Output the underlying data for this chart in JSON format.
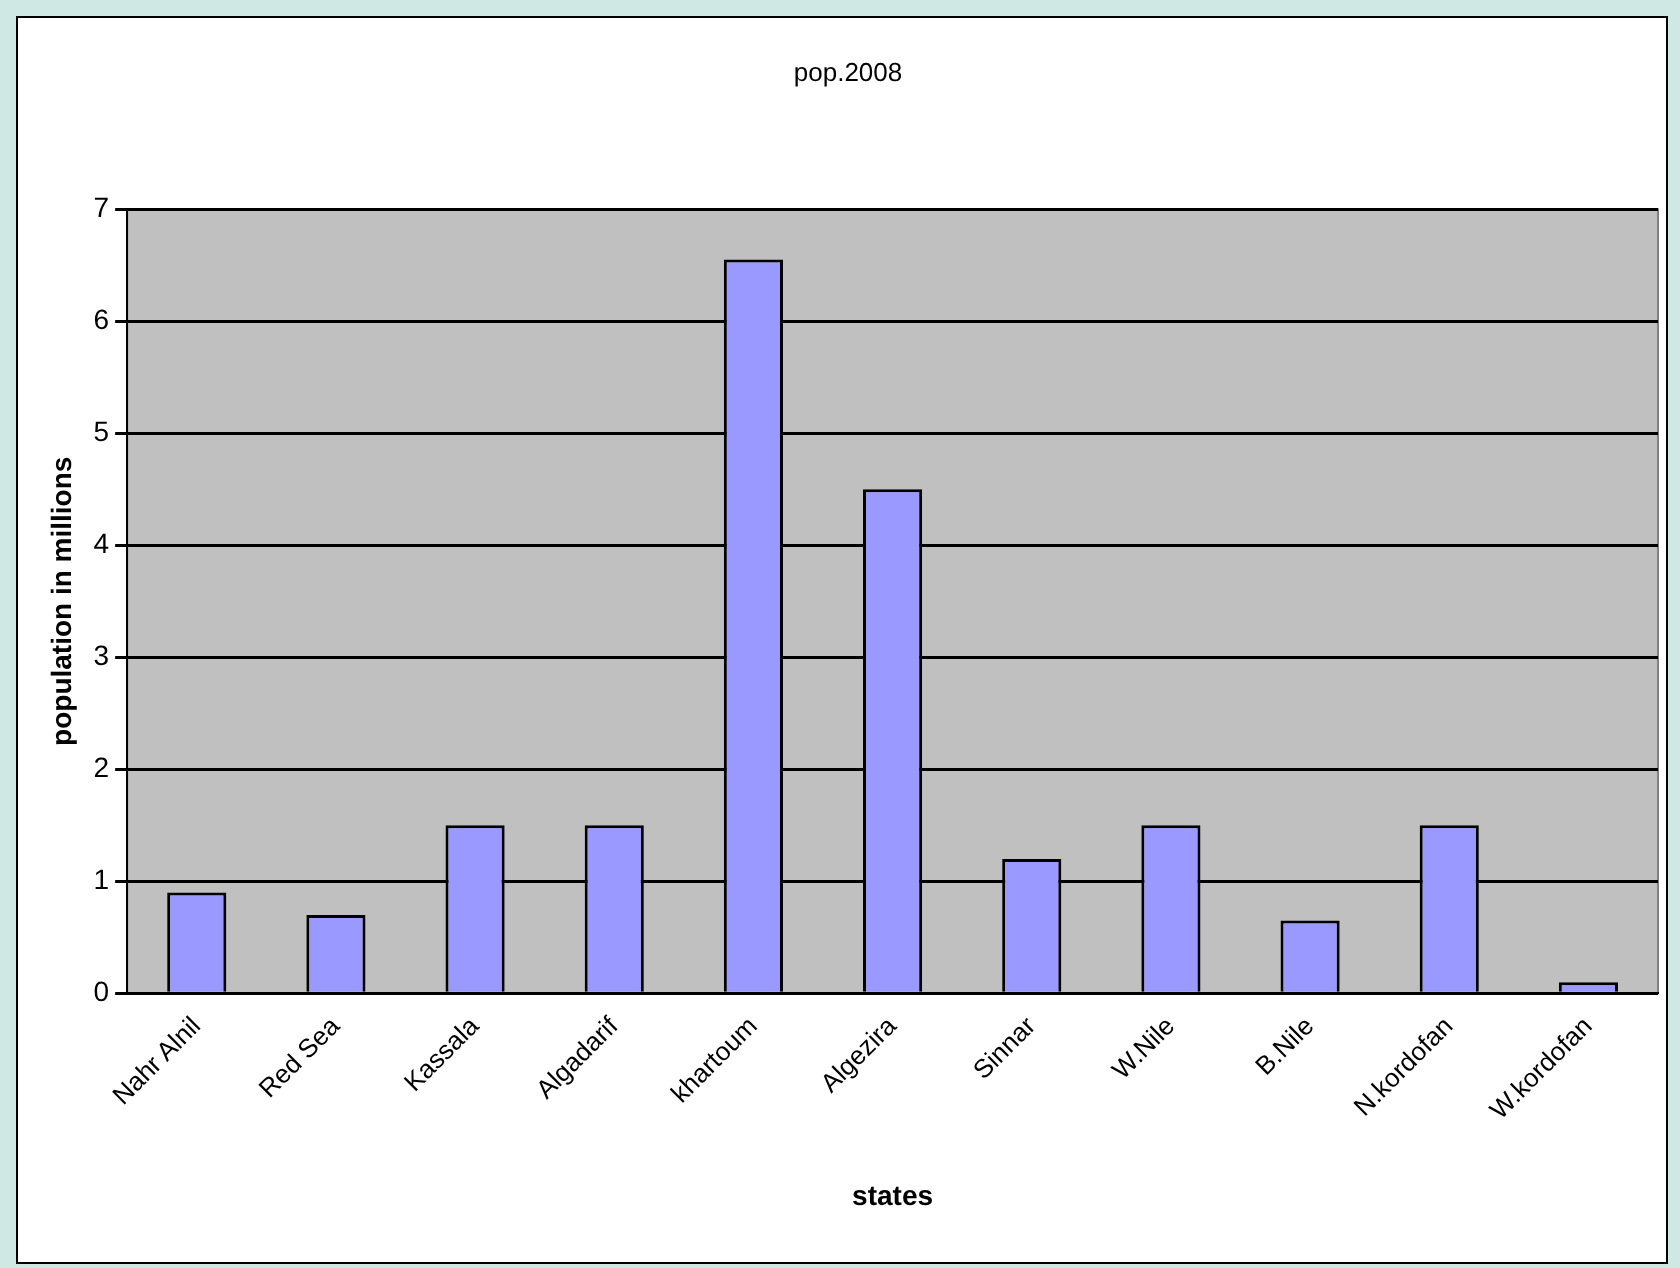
{
  "chart_data": {
    "type": "bar",
    "title": "pop.2008",
    "xlabel": "states",
    "ylabel": "population in millions",
    "categories": [
      "Nahr Alnil",
      "Red Sea",
      "Kassala",
      "Algadarif",
      "khartoum",
      "Algezira",
      "Sinnar",
      "W.Nile",
      "B.Nile",
      "N.kordofan",
      "W.kordofan"
    ],
    "values": [
      0.9,
      0.7,
      1.5,
      1.5,
      6.55,
      4.5,
      1.2,
      1.5,
      0.65,
      1.5,
      0.1
    ],
    "color": "#9999ff",
    "ylim": [
      0,
      7
    ],
    "yticks": [
      0,
      1,
      2,
      3,
      4,
      5,
      6,
      7
    ],
    "grid": "y",
    "legend": false
  }
}
